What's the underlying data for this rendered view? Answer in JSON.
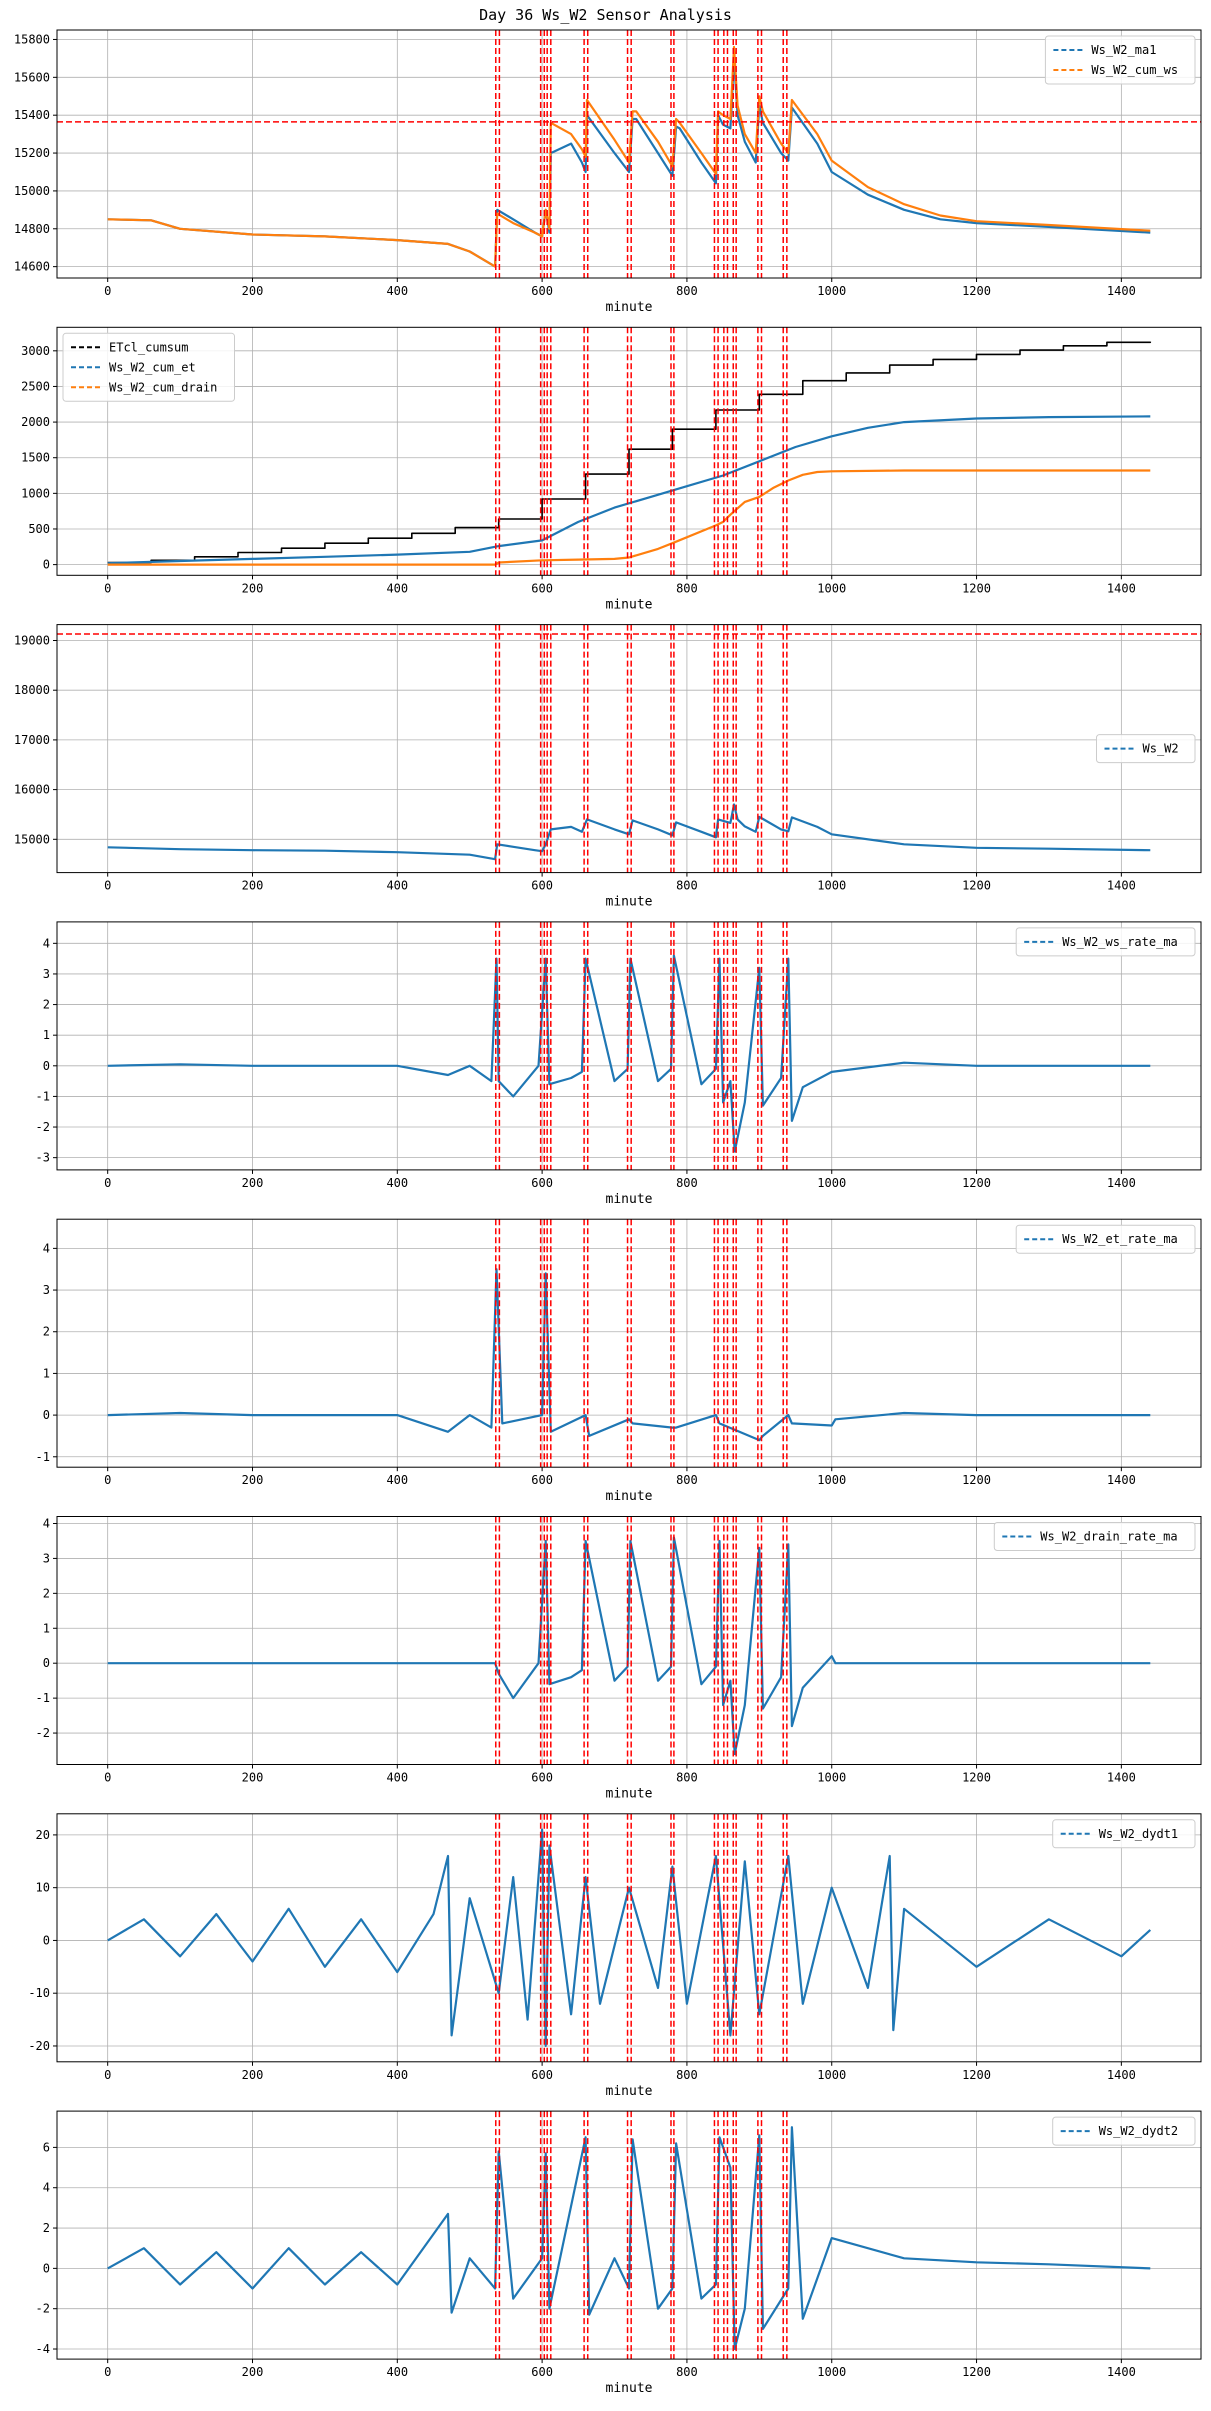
{
  "title": "Day 36 Ws_W2 Sensor Analysis",
  "colors": {
    "blue": "#1f77b4",
    "orange": "#ff7f0e",
    "black": "#000000",
    "red": "#ff0000",
    "grid": "#b0b0b0"
  },
  "chart_data": [
    {
      "type": "line",
      "xlabel": "minute",
      "xlim": [
        -70,
        1510
      ],
      "ylim": [
        14540,
        15850
      ],
      "xticks": [
        0,
        200,
        400,
        600,
        800,
        1000,
        1200,
        1400
      ],
      "yticks": [
        14600,
        14800,
        15000,
        15200,
        15400,
        15600,
        15800
      ],
      "grid": true,
      "legend_position": "top-right",
      "hline": 15365,
      "series": [
        {
          "name": "Ws_W2_ma1",
          "color": "blue",
          "x": [
            0,
            60,
            100,
            200,
            300,
            400,
            470,
            500,
            535,
            538,
            560,
            590,
            600,
            605,
            610,
            612,
            640,
            655,
            660,
            662,
            700,
            720,
            725,
            730,
            760,
            780,
            785,
            790,
            820,
            840,
            843,
            850,
            860,
            865,
            870,
            880,
            895,
            900,
            905,
            930,
            940,
            945,
            980,
            1000,
            1050,
            1100,
            1150,
            1200,
            1300,
            1440
          ],
          "y": [
            14850,
            14845,
            14800,
            14770,
            14760,
            14740,
            14720,
            14680,
            14600,
            14900,
            14850,
            14780,
            14760,
            14900,
            14780,
            15200,
            15250,
            15150,
            15100,
            15400,
            15200,
            15100,
            15380,
            15380,
            15200,
            15080,
            15340,
            15330,
            15150,
            15040,
            15400,
            15350,
            15330,
            15700,
            15400,
            15260,
            15150,
            15450,
            15360,
            15200,
            15160,
            15440,
            15250,
            15100,
            14980,
            14900,
            14850,
            14830,
            14810,
            14780
          ]
        },
        {
          "name": "Ws_W2_cum_ws",
          "color": "orange",
          "x": [
            0,
            60,
            100,
            200,
            300,
            400,
            470,
            500,
            535,
            538,
            560,
            590,
            600,
            605,
            610,
            612,
            640,
            655,
            660,
            662,
            700,
            720,
            725,
            730,
            760,
            780,
            785,
            790,
            820,
            840,
            843,
            850,
            860,
            865,
            870,
            880,
            895,
            900,
            905,
            930,
            940,
            945,
            980,
            1000,
            1050,
            1100,
            1150,
            1200,
            1300,
            1440
          ],
          "y": [
            14850,
            14845,
            14800,
            14770,
            14760,
            14740,
            14720,
            14680,
            14600,
            14880,
            14830,
            14780,
            14760,
            14900,
            14800,
            15360,
            15300,
            15220,
            15180,
            15480,
            15270,
            15150,
            15420,
            15420,
            15260,
            15130,
            15380,
            15360,
            15200,
            15090,
            15420,
            15400,
            15380,
            15760,
            15450,
            15300,
            15200,
            15500,
            15420,
            15250,
            15200,
            15480,
            15300,
            15160,
            15020,
            14930,
            14870,
            14840,
            14820,
            14790
          ]
        }
      ]
    },
    {
      "type": "line",
      "xlabel": "minute",
      "xlim": [
        -70,
        1510
      ],
      "ylim": [
        -150,
        3330
      ],
      "xticks": [
        0,
        200,
        400,
        600,
        800,
        1000,
        1200,
        1400
      ],
      "yticks": [
        0,
        500,
        1000,
        1500,
        2000,
        2500,
        3000
      ],
      "grid": true,
      "legend_position": "top-left",
      "series": [
        {
          "name": "ETcl_cumsum",
          "color": "black",
          "step": true,
          "x": [
            0,
            60,
            120,
            180,
            240,
            300,
            360,
            420,
            480,
            540,
            600,
            660,
            720,
            780,
            840,
            900,
            960,
            1020,
            1080,
            1140,
            1200,
            1260,
            1320,
            1380,
            1440
          ],
          "y": [
            30,
            60,
            110,
            170,
            230,
            300,
            370,
            440,
            520,
            640,
            920,
            1270,
            1620,
            1900,
            2170,
            2390,
            2580,
            2690,
            2800,
            2880,
            2950,
            3010,
            3070,
            3120,
            3130
          ]
        },
        {
          "name": "Ws_W2_cum_et",
          "color": "blue",
          "x": [
            0,
            100,
            200,
            300,
            400,
            500,
            540,
            600,
            650,
            700,
            750,
            800,
            850,
            900,
            950,
            1000,
            1050,
            1100,
            1200,
            1300,
            1440
          ],
          "y": [
            20,
            50,
            80,
            110,
            140,
            180,
            260,
            340,
            600,
            800,
            950,
            1100,
            1250,
            1450,
            1650,
            1800,
            1920,
            2000,
            2050,
            2070,
            2080
          ]
        },
        {
          "name": "Ws_W2_cum_drain",
          "color": "orange",
          "x": [
            0,
            100,
            200,
            300,
            400,
            535,
            540,
            600,
            650,
            700,
            720,
            760,
            780,
            840,
            850,
            860,
            880,
            900,
            920,
            940,
            960,
            980,
            1000,
            1100,
            1200,
            1440
          ],
          "y": [
            0,
            0,
            0,
            0,
            0,
            0,
            30,
            60,
            70,
            80,
            100,
            220,
            300,
            550,
            600,
            700,
            880,
            950,
            1080,
            1180,
            1260,
            1300,
            1310,
            1320,
            1320,
            1320
          ]
        }
      ]
    },
    {
      "type": "line",
      "xlabel": "minute",
      "xlim": [
        -70,
        1510
      ],
      "ylim": [
        14330,
        19320
      ],
      "xticks": [
        0,
        200,
        400,
        600,
        800,
        1000,
        1200,
        1400
      ],
      "yticks": [
        15000,
        16000,
        17000,
        18000,
        19000
      ],
      "grid": true,
      "legend_position": "center-right",
      "hline": 19130,
      "series": [
        {
          "name": "Ws_W2",
          "color": "blue",
          "x": [
            0,
            100,
            200,
            300,
            400,
            500,
            535,
            538,
            560,
            590,
            600,
            605,
            612,
            640,
            655,
            662,
            700,
            720,
            725,
            760,
            780,
            785,
            820,
            840,
            843,
            860,
            865,
            870,
            880,
            895,
            900,
            930,
            940,
            945,
            980,
            1000,
            1100,
            1200,
            1300,
            1440
          ],
          "y": [
            14840,
            14800,
            14780,
            14770,
            14740,
            14690,
            14600,
            14900,
            14850,
            14780,
            14760,
            14900,
            15200,
            15250,
            15150,
            15400,
            15200,
            15100,
            15380,
            15200,
            15080,
            15340,
            15150,
            15040,
            15400,
            15330,
            15700,
            15400,
            15260,
            15150,
            15450,
            15200,
            15160,
            15440,
            15250,
            15100,
            14900,
            14830,
            14810,
            14780
          ]
        }
      ]
    },
    {
      "type": "line",
      "xlabel": "minute",
      "xlim": [
        -70,
        1510
      ],
      "ylim": [
        -3.4,
        4.7
      ],
      "xticks": [
        0,
        200,
        400,
        600,
        800,
        1000,
        1200,
        1400
      ],
      "yticks": [
        -3,
        -2,
        -1,
        0,
        1,
        2,
        3,
        4
      ],
      "grid": true,
      "legend_position": "top-right",
      "series": [
        {
          "name": "Ws_W2_ws_rate_ma",
          "color": "blue",
          "x": [
            0,
            100,
            200,
            300,
            400,
            470,
            500,
            530,
            537,
            540,
            560,
            595,
            605,
            610,
            640,
            655,
            660,
            700,
            718,
            722,
            760,
            778,
            782,
            820,
            840,
            845,
            850,
            860,
            866,
            880,
            900,
            905,
            930,
            940,
            945,
            960,
            1000,
            1100,
            1200,
            1300,
            1440
          ],
          "y": [
            0,
            0.05,
            0,
            0,
            0,
            -0.3,
            0,
            -0.5,
            3.5,
            -0.5,
            -1,
            0,
            3.5,
            -0.6,
            -0.4,
            -0.2,
            3.5,
            -0.5,
            -0.1,
            3.5,
            -0.5,
            -0.1,
            3.6,
            -0.6,
            -0.1,
            3.5,
            -1.2,
            -0.5,
            -2.8,
            -1.2,
            3.2,
            -1.3,
            -0.4,
            3.5,
            -1.8,
            -0.7,
            -0.2,
            0.1,
            0,
            0,
            0
          ]
        }
      ]
    },
    {
      "type": "line",
      "xlabel": "minute",
      "xlim": [
        -70,
        1510
      ],
      "ylim": [
        -1.25,
        4.7
      ],
      "xticks": [
        0,
        200,
        400,
        600,
        800,
        1000,
        1200,
        1400
      ],
      "yticks": [
        -1,
        0,
        1,
        2,
        3,
        4
      ],
      "grid": true,
      "legend_position": "top-right",
      "series": [
        {
          "name": "Ws_W2_et_rate_ma",
          "color": "blue",
          "x": [
            0,
            100,
            200,
            300,
            400,
            470,
            500,
            530,
            537,
            545,
            600,
            605,
            612,
            660,
            665,
            720,
            725,
            780,
            785,
            840,
            845,
            900,
            905,
            940,
            945,
            1000,
            1005,
            1100,
            1200,
            1300,
            1440
          ],
          "y": [
            0,
            0.05,
            0,
            0,
            0,
            -0.4,
            0,
            -0.3,
            3.5,
            -0.2,
            0,
            3.4,
            -0.4,
            0,
            -0.5,
            -0.1,
            -0.2,
            -0.3,
            -0.3,
            0,
            -0.2,
            -0.6,
            -0.5,
            0,
            -0.2,
            -0.25,
            -0.1,
            0.05,
            0,
            0,
            0
          ]
        }
      ]
    },
    {
      "type": "line",
      "xlabel": "minute",
      "xlim": [
        -70,
        1510
      ],
      "ylim": [
        -2.9,
        4.2
      ],
      "xticks": [
        0,
        200,
        400,
        600,
        800,
        1000,
        1200,
        1400
      ],
      "yticks": [
        -2,
        -1,
        0,
        1,
        2,
        3,
        4
      ],
      "grid": true,
      "legend_position": "top-right",
      "series": [
        {
          "name": "Ws_W2_drain_rate_ma",
          "color": "blue",
          "x": [
            0,
            200,
            400,
            535,
            540,
            560,
            595,
            605,
            610,
            640,
            655,
            660,
            700,
            718,
            722,
            760,
            778,
            782,
            820,
            840,
            845,
            850,
            860,
            866,
            880,
            900,
            905,
            930,
            940,
            945,
            960,
            1000,
            1005,
            1100,
            1200,
            1300,
            1440
          ],
          "y": [
            0,
            0,
            0,
            0,
            -0.3,
            -1,
            0,
            3.5,
            -0.6,
            -0.4,
            -0.2,
            3.5,
            -0.5,
            -0.1,
            3.5,
            -0.5,
            -0.1,
            3.6,
            -0.6,
            -0.1,
            3.5,
            -1.2,
            -0.5,
            -2.6,
            -1.2,
            3.3,
            -1.3,
            -0.4,
            3.4,
            -1.8,
            -0.7,
            0.2,
            0,
            0,
            0,
            0,
            0
          ]
        }
      ]
    },
    {
      "type": "line",
      "xlabel": "minute",
      "xlim": [
        -70,
        1510
      ],
      "ylim": [
        -23,
        24
      ],
      "xticks": [
        0,
        200,
        400,
        600,
        800,
        1000,
        1200,
        1400
      ],
      "yticks": [
        -20,
        -10,
        0,
        10,
        20
      ],
      "grid": true,
      "legend_position": "top-right",
      "series": [
        {
          "name": "Ws_W2_dydt1",
          "color": "blue",
          "x": [
            0,
            50,
            100,
            150,
            200,
            250,
            300,
            350,
            400,
            450,
            470,
            475,
            500,
            540,
            560,
            580,
            600,
            605,
            610,
            640,
            660,
            680,
            720,
            760,
            780,
            800,
            840,
            860,
            880,
            900,
            940,
            960,
            1000,
            1050,
            1080,
            1085,
            1100,
            1200,
            1300,
            1400,
            1440
          ],
          "y": [
            0,
            4,
            -3,
            5,
            -4,
            6,
            -5,
            4,
            -6,
            5,
            16,
            -18,
            8,
            -10,
            12,
            -15,
            21,
            -20,
            18,
            -14,
            12,
            -12,
            10,
            -9,
            14,
            -12,
            16,
            -18,
            15,
            -14,
            16,
            -12,
            10,
            -9,
            16,
            -17,
            6,
            -5,
            4,
            -3,
            2
          ]
        }
      ]
    },
    {
      "type": "line",
      "xlabel": "minute",
      "xlim": [
        -70,
        1510
      ],
      "ylim": [
        -4.5,
        7.8
      ],
      "xticks": [
        0,
        200,
        400,
        600,
        800,
        1000,
        1200,
        1400
      ],
      "yticks": [
        -4,
        -2,
        0,
        2,
        4,
        6
      ],
      "grid": true,
      "legend_position": "top-right",
      "series": [
        {
          "name": "Ws_W2_dydt2",
          "color": "blue",
          "x": [
            0,
            50,
            100,
            150,
            200,
            250,
            300,
            350,
            400,
            470,
            475,
            500,
            535,
            540,
            560,
            600,
            605,
            610,
            660,
            665,
            700,
            720,
            725,
            760,
            780,
            785,
            820,
            840,
            845,
            860,
            866,
            880,
            900,
            905,
            940,
            945,
            960,
            1000,
            1100,
            1200,
            1300,
            1440
          ],
          "y": [
            0,
            1,
            -0.8,
            0.8,
            -1,
            1,
            -0.8,
            0.8,
            -0.8,
            2.7,
            -2.2,
            0.5,
            -1,
            5.8,
            -1.5,
            0.5,
            5.7,
            -2,
            6.5,
            -2.3,
            0.5,
            -1,
            6.4,
            -2,
            -1,
            6.2,
            -1.5,
            -0.8,
            6.5,
            5,
            -4,
            -2,
            6.6,
            -3,
            -1,
            7,
            -2.5,
            1.5,
            0.5,
            0.3,
            0.2,
            0
          ]
        }
      ]
    }
  ],
  "event_lines": [
    536,
    541,
    598,
    603,
    607,
    612,
    658,
    663,
    718,
    723,
    778,
    782,
    838,
    843,
    851,
    856,
    864,
    868,
    898,
    903,
    933,
    938
  ]
}
